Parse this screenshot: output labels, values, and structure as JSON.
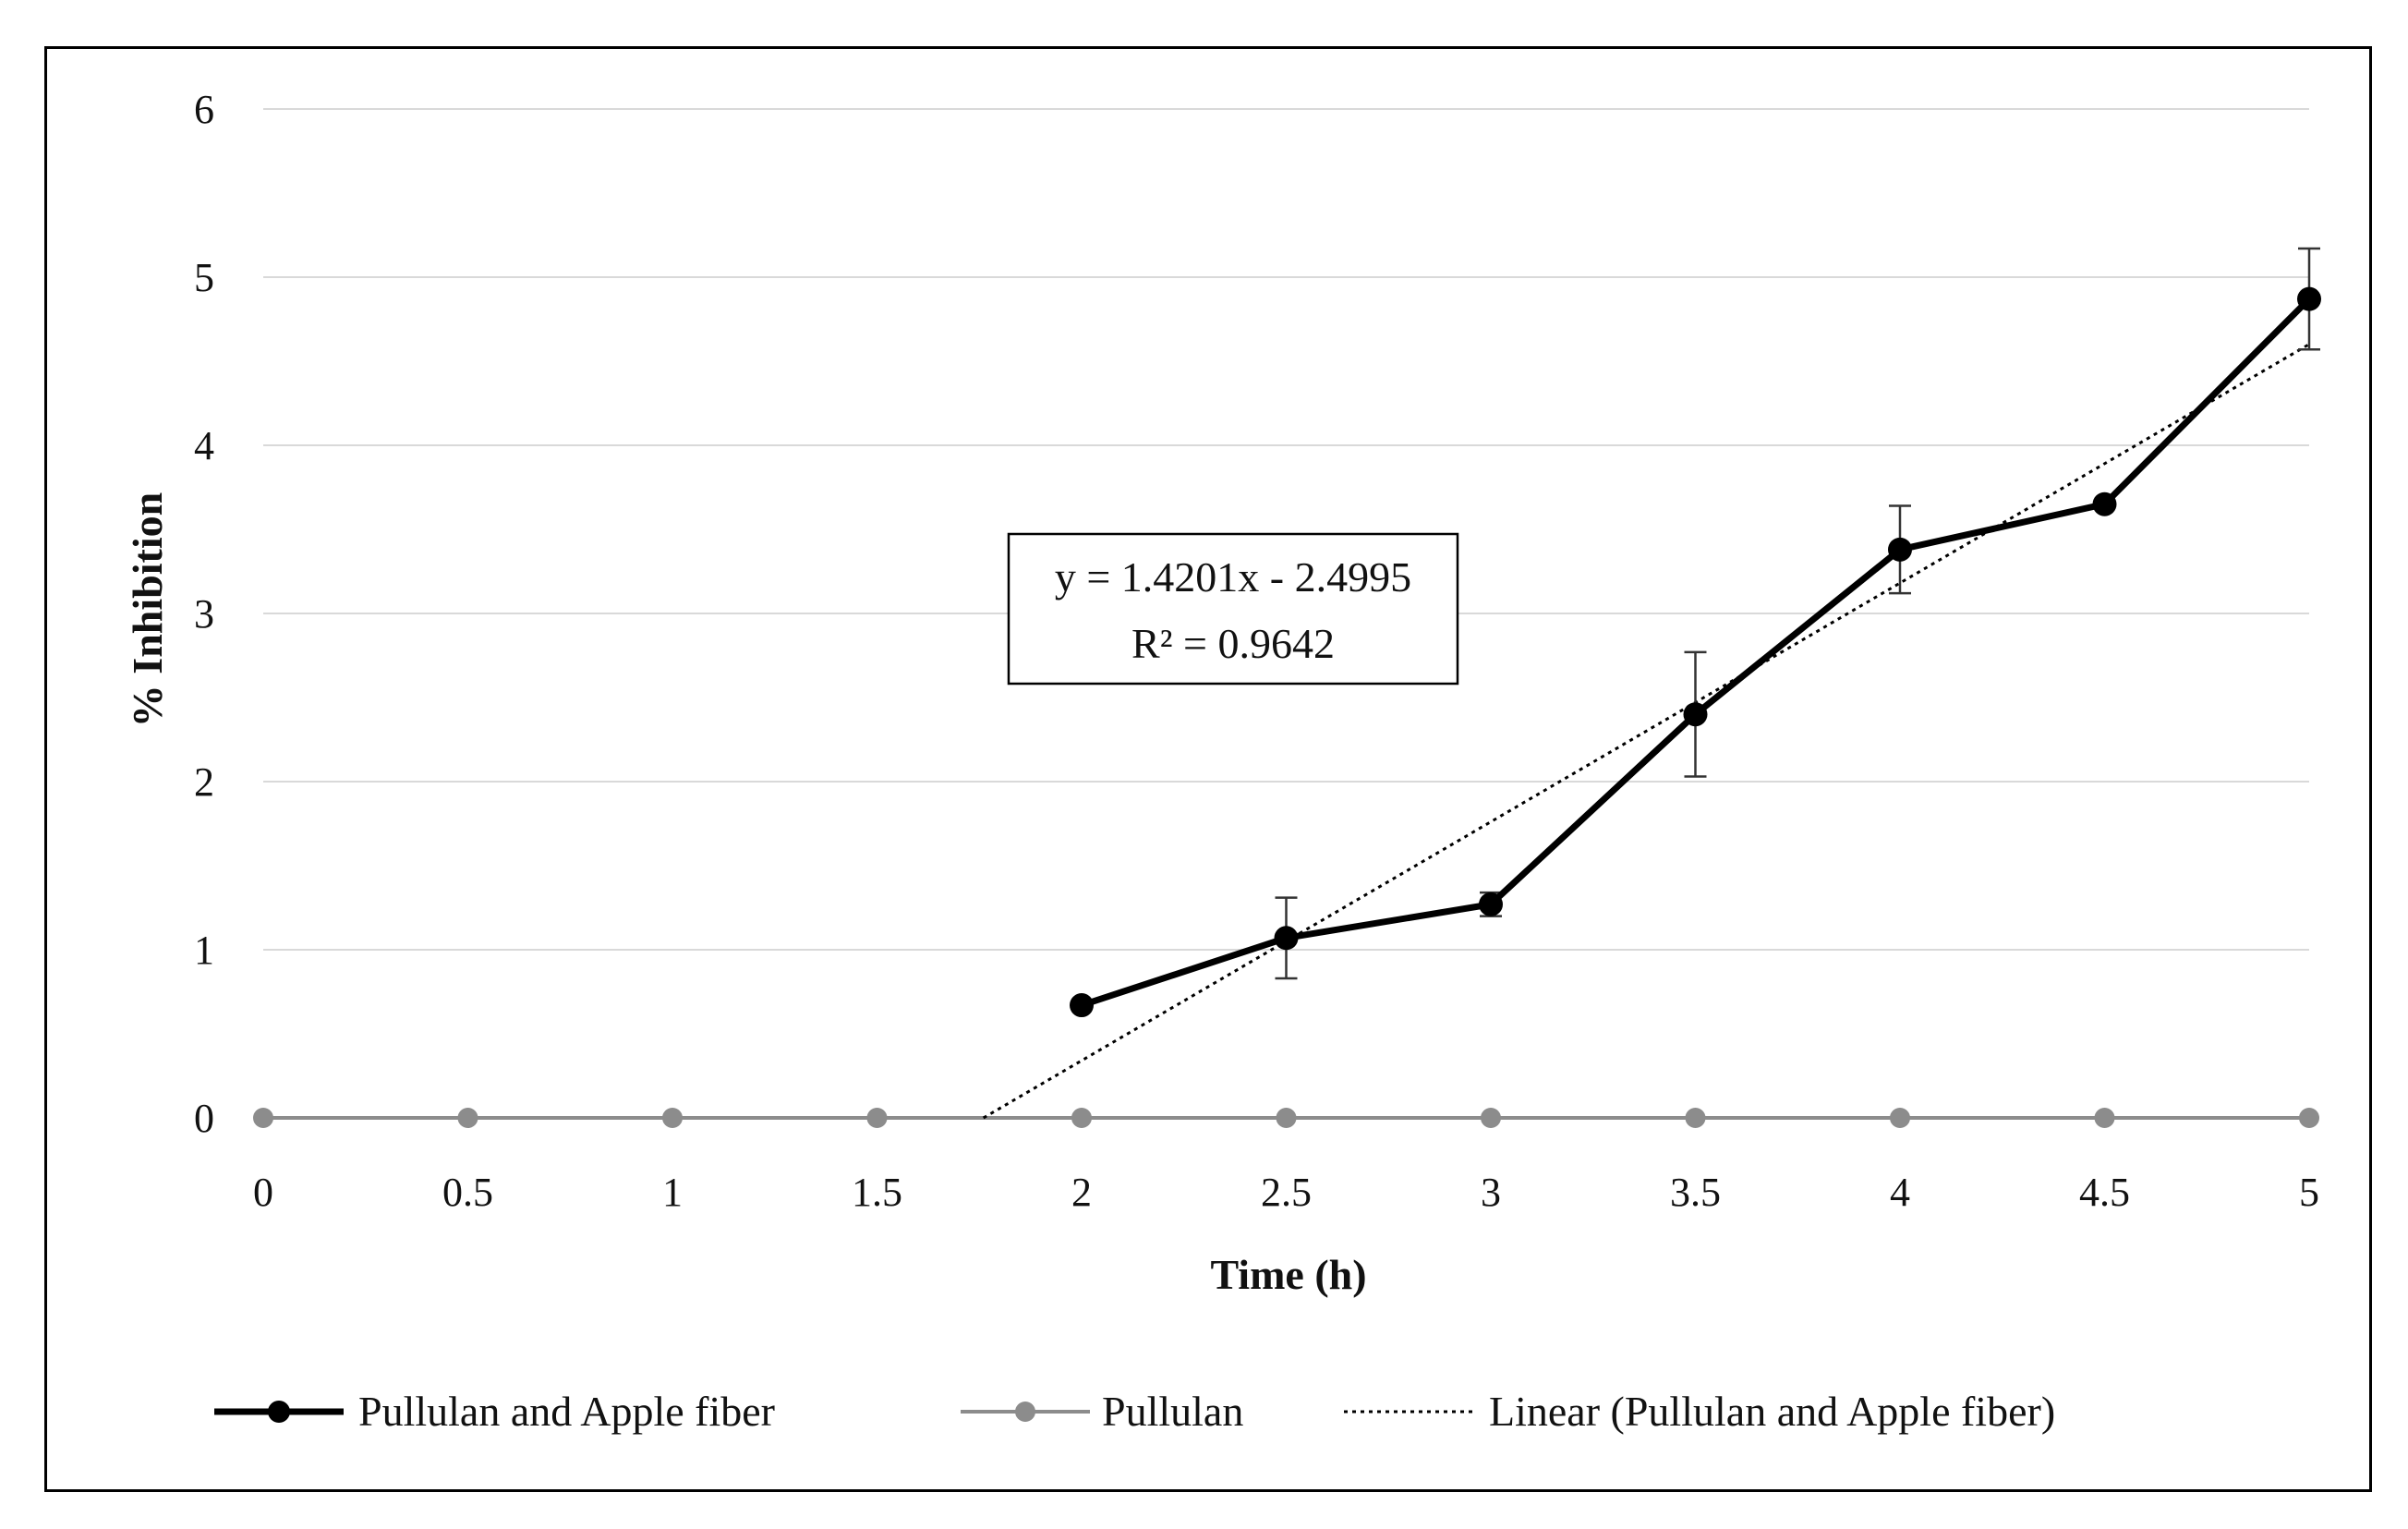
{
  "chart_data": {
    "type": "line",
    "xlabel": "Time (h)",
    "ylabel": "% Inhibition",
    "xlim": [
      0,
      5
    ],
    "ylim": [
      0,
      6
    ],
    "x_ticks": [
      "0",
      "0.5",
      "1",
      "1.5",
      "2",
      "2.5",
      "3",
      "3.5",
      "4",
      "4.5",
      "5"
    ],
    "y_ticks": [
      "0",
      "1",
      "2",
      "3",
      "4",
      "5",
      "6"
    ],
    "grid": "horizontal",
    "legend_position": "bottom",
    "series": [
      {
        "name": "Pullulan and Apple fiber",
        "color": "#000000",
        "x": [
          2,
          2.5,
          3,
          3.5,
          4,
          4.5,
          5
        ],
        "y": [
          0.67,
          1.07,
          1.27,
          2.4,
          3.38,
          3.65,
          4.87
        ],
        "error": [
          0,
          0.24,
          0.07,
          0.37,
          0.26,
          0,
          0.3
        ]
      },
      {
        "name": "Pullulan",
        "color": "#8c8c8c",
        "x": [
          0,
          0.5,
          1,
          1.5,
          2,
          2.5,
          3,
          3.5,
          4,
          4.5,
          5
        ],
        "y": [
          0,
          0,
          0,
          0,
          0,
          0,
          0,
          0,
          0,
          0,
          0
        ]
      }
    ],
    "trendline": {
      "name": "Linear (Pullulan and Apple fiber)",
      "slope": 1.4201,
      "intercept": -2.4995,
      "x_range": [
        1.76,
        5
      ],
      "equation": "y = 1.4201x - 2.4995",
      "r_squared": "R² = 0.9642"
    }
  }
}
